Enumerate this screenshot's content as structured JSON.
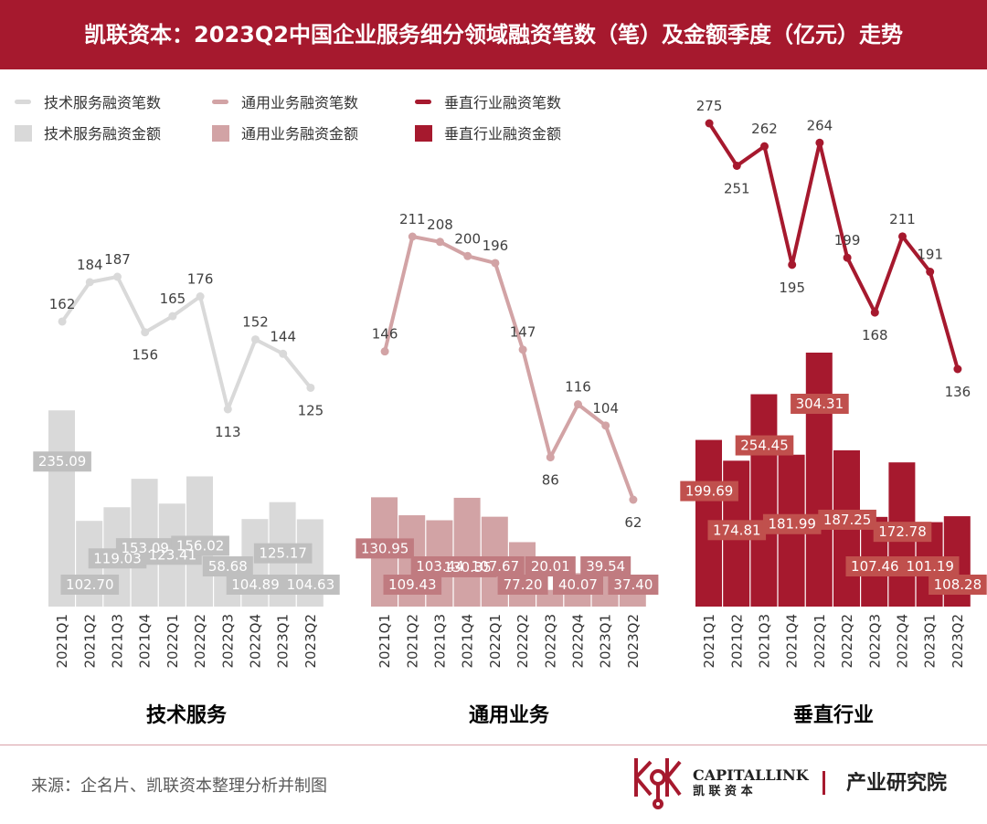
{
  "header": {
    "title": "凯联资本：2023Q2中国企业服务细分领域融资笔数（笔）及金额季度（亿元）走势"
  },
  "legend": {
    "items": [
      {
        "label": "技术服务融资笔数",
        "kind": "line",
        "color": "#D9D9D9"
      },
      {
        "label": "通用业务融资笔数",
        "kind": "line",
        "color": "#D2A3A5"
      },
      {
        "label": "垂直行业融资笔数",
        "kind": "line",
        "color": "#A6192E"
      },
      {
        "label": "技术服务融资金额",
        "kind": "bar",
        "color": "#D9D9D9"
      },
      {
        "label": "通用业务融资金额",
        "kind": "bar",
        "color": "#D2A3A5"
      },
      {
        "label": "垂直行业融资金额",
        "kind": "bar",
        "color": "#A6192E"
      }
    ]
  },
  "chart_data": [
    {
      "type": "bar+line",
      "title": "技术服务",
      "categories": [
        "2021Q1",
        "2021Q2",
        "2021Q3",
        "2021Q4",
        "2022Q1",
        "2022Q2",
        "2022Q3",
        "2022Q4",
        "2023Q1",
        "2023Q2"
      ],
      "series": [
        {
          "name": "技术服务融资金额",
          "kind": "bar",
          "values": [
            235.09,
            102.7,
            119.03,
            153.09,
            123.41,
            156.02,
            58.68,
            104.89,
            125.17,
            104.63
          ]
        },
        {
          "name": "技术服务融资笔数",
          "kind": "line",
          "values": [
            162,
            184,
            187,
            156,
            165,
            176,
            113,
            152,
            144,
            125
          ]
        }
      ],
      "bar_color": "#D9D9D9",
      "line_color": "#D9D9D9",
      "label_box_color": "#BFBFBF"
    },
    {
      "type": "bar+line",
      "title": "通用业务",
      "categories": [
        "2021Q1",
        "2021Q2",
        "2021Q3",
        "2021Q4",
        "2022Q1",
        "2022Q2",
        "2022Q3",
        "2022Q4",
        "2023Q1",
        "2023Q2"
      ],
      "series": [
        {
          "name": "通用业务融资金额",
          "kind": "bar",
          "values": [
            130.95,
            109.43,
            103.44,
            130.35,
            107.67,
            77.2,
            20.01,
            40.07,
            39.54,
            37.4
          ]
        },
        {
          "name": "通用业务融资笔数",
          "kind": "line",
          "values": [
            146,
            211,
            208,
            200,
            196,
            147,
            86,
            116,
            104,
            62
          ]
        }
      ],
      "bar_color": "#D2A3A5",
      "line_color": "#D2A3A5",
      "label_box_color": "#C07B80"
    },
    {
      "type": "bar+line",
      "title": "垂直行业",
      "categories": [
        "2021Q1",
        "2021Q2",
        "2021Q3",
        "2021Q4",
        "2022Q1",
        "2022Q2",
        "2022Q3",
        "2022Q4",
        "2023Q1",
        "2023Q2"
      ],
      "series": [
        {
          "name": "垂直行业融资金额",
          "kind": "bar",
          "values": [
            199.69,
            174.81,
            254.45,
            181.99,
            304.31,
            187.25,
            107.46,
            172.78,
            101.19,
            108.28
          ]
        },
        {
          "name": "垂直行业融资笔数",
          "kind": "line",
          "values": [
            275,
            251,
            262,
            195,
            264,
            199,
            168,
            211,
            191,
            136
          ]
        }
      ],
      "bar_color": "#A6192E",
      "line_color": "#A6192E",
      "label_box_color": "#C0504D"
    }
  ],
  "footer": {
    "source": "来源：企名片、凯联资本整理分析并制图",
    "brand_en": "CAPITALLINK",
    "brand_cn": "凯  联  资  本",
    "institute": "产业研究院",
    "brand_color": "#A6192E"
  }
}
